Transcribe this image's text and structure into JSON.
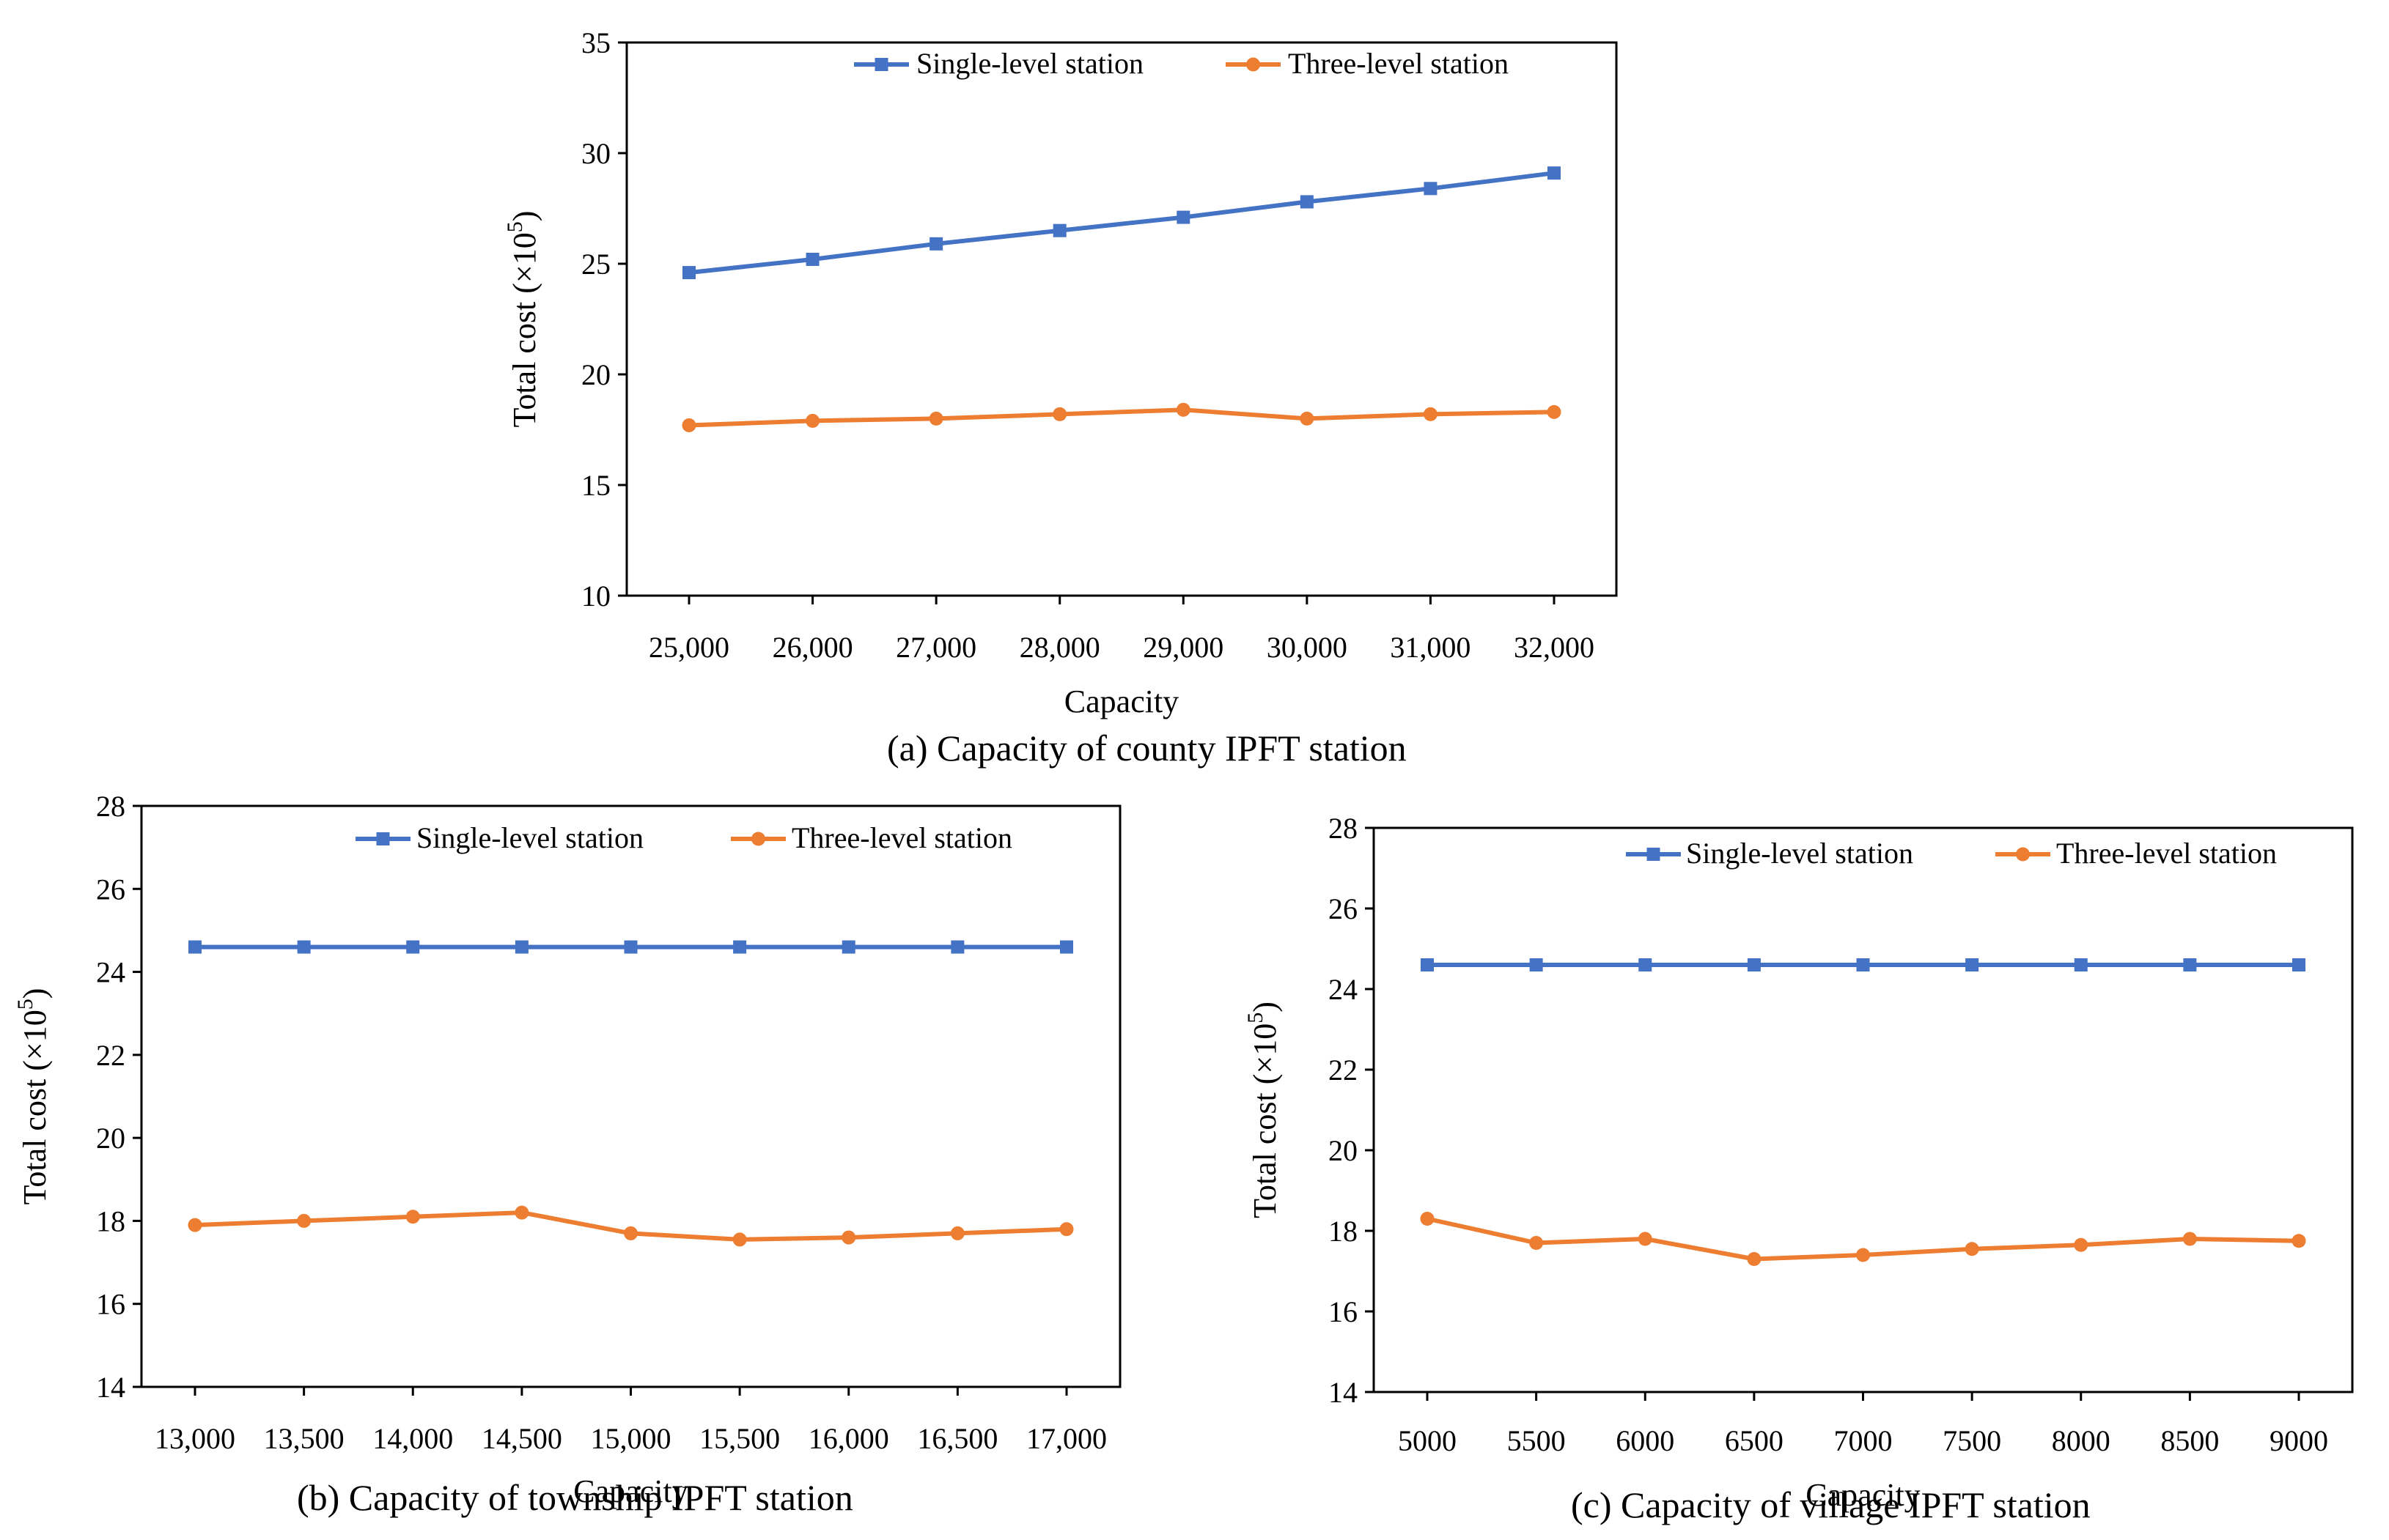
{
  "colors": {
    "single": "#4472C4",
    "three": "#ED7D31",
    "axis": "#000000"
  },
  "chart_data": [
    {
      "id": "a",
      "type": "line",
      "caption": "(a) Capacity of county IPFT station",
      "title": "",
      "xlabel": "Capacity",
      "ylabel": "Total cost (×10",
      "ylabel_sup": "5",
      "ylabel_close": ")",
      "categories": [
        "25,000",
        "26,000",
        "27,000",
        "28,000",
        "29,000",
        "30,000",
        "31,000",
        "32,000"
      ],
      "ylim": [
        10,
        35
      ],
      "yticks": [
        10,
        15,
        20,
        25,
        30,
        35
      ],
      "ytick_labels": [
        "10",
        "15",
        "20",
        "25",
        "30",
        "35"
      ],
      "legend": "top",
      "series": [
        {
          "name": "Single-level station",
          "marker": "square",
          "values": [
            24.6,
            25.2,
            25.9,
            26.5,
            27.1,
            27.8,
            28.4,
            29.1
          ]
        },
        {
          "name": "Three-level station",
          "marker": "circle",
          "values": [
            17.7,
            17.9,
            18.0,
            18.2,
            18.4,
            18.0,
            18.2,
            18.3
          ]
        }
      ]
    },
    {
      "id": "b",
      "type": "line",
      "caption": "(b) Capacity of township IPFT station",
      "title": "",
      "xlabel": "Capacity",
      "ylabel": "Total cost (×10",
      "ylabel_sup": "5",
      "ylabel_close": ")",
      "categories": [
        "13,000",
        "13,500",
        "14,000",
        "14,500",
        "15,000",
        "15,500",
        "16,000",
        "16,500",
        "17,000"
      ],
      "ylim": [
        14,
        28
      ],
      "yticks": [
        14,
        16,
        18,
        20,
        22,
        24,
        26,
        28
      ],
      "ytick_labels": [
        "14",
        "16",
        "18",
        "20",
        "22",
        "24",
        "26",
        "28"
      ],
      "legend": "top",
      "series": [
        {
          "name": "Single-level station",
          "marker": "square",
          "values": [
            24.6,
            24.6,
            24.6,
            24.6,
            24.6,
            24.6,
            24.6,
            24.6,
            24.6
          ]
        },
        {
          "name": "Three-level station",
          "marker": "circle",
          "values": [
            17.9,
            18.0,
            18.1,
            18.2,
            17.7,
            17.55,
            17.6,
            17.7,
            17.8
          ]
        }
      ]
    },
    {
      "id": "c",
      "type": "line",
      "caption": "(c) Capacity of village IPFT station",
      "title": "",
      "xlabel": "Capacity",
      "ylabel": "Total cost (×10",
      "ylabel_sup": "5",
      "ylabel_close": ")",
      "categories": [
        "5000",
        "5500",
        "6000",
        "6500",
        "7000",
        "7500",
        "8000",
        "8500",
        "9000"
      ],
      "ylim": [
        14,
        28
      ],
      "yticks": [
        14,
        16,
        18,
        20,
        22,
        24,
        26,
        28
      ],
      "ytick_labels": [
        "14",
        "16",
        "18",
        "20",
        "22",
        "24",
        "26",
        "28"
      ],
      "legend": "top",
      "series": [
        {
          "name": "Single-level station",
          "marker": "square",
          "values": [
            24.6,
            24.6,
            24.6,
            24.6,
            24.6,
            24.6,
            24.6,
            24.6,
            24.6
          ]
        },
        {
          "name": "Three-level station",
          "marker": "circle",
          "values": [
            18.3,
            17.7,
            17.8,
            17.3,
            17.4,
            17.55,
            17.65,
            17.8,
            17.75
          ]
        }
      ]
    }
  ]
}
